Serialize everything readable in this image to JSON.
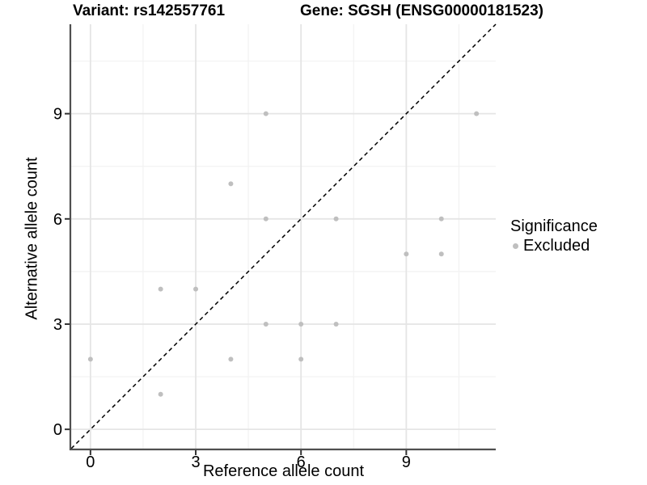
{
  "header": {
    "variant_title": "Variant: rs142557761",
    "gene_title": "Gene: SGSH (ENSG00000181523)"
  },
  "axes": {
    "x_label": "Reference allele count",
    "y_label": "Alternative allele count"
  },
  "legend": {
    "title": "Significance",
    "items": [
      {
        "label": "Excluded",
        "color": "#bfbfbf",
        "marker": "circle-icon"
      }
    ]
  },
  "colors": {
    "background": "#ffffff",
    "panel_background": "#ffffff",
    "point": "#bfbfbf",
    "grid_major": "#e5e5e5",
    "grid_minor": "#f2f2f2",
    "axis_line": "#4f4f4f",
    "tick": "#333333",
    "text": "#000000",
    "reference_line": "#000000"
  },
  "chart_data": {
    "type": "scatter",
    "title": "Variant: rs142557761  |  Gene: SGSH (ENSG00000181523)",
    "xlabel": "Reference allele count",
    "ylabel": "Alternative allele count",
    "xlim": [
      -0.55,
      11.55
    ],
    "ylim": [
      -0.55,
      11.55
    ],
    "x_ticks": [
      0,
      3,
      6,
      9
    ],
    "y_ticks": [
      0,
      3,
      6,
      9
    ],
    "x_minor_ticks": [
      1.5,
      4.5,
      7.5,
      10.5
    ],
    "y_minor_ticks": [
      1.5,
      4.5,
      7.5,
      10.5
    ],
    "grid": true,
    "legend_position": "right",
    "series": [
      {
        "name": "Excluded",
        "color": "#bfbfbf",
        "points": [
          [
            0,
            2
          ],
          [
            2,
            1
          ],
          [
            2,
            4
          ],
          [
            3,
            4
          ],
          [
            4,
            2
          ],
          [
            4,
            7
          ],
          [
            5,
            3
          ],
          [
            5,
            6
          ],
          [
            5,
            9
          ],
          [
            6,
            2
          ],
          [
            6,
            3
          ],
          [
            7,
            3
          ],
          [
            7,
            6
          ],
          [
            9,
            5
          ],
          [
            10,
            5
          ],
          [
            10,
            6
          ],
          [
            11,
            9
          ]
        ]
      }
    ],
    "reference_line": {
      "label": "identity y = x",
      "slope": 1,
      "intercept": 0,
      "style": "dashed",
      "color": "#000000"
    }
  }
}
